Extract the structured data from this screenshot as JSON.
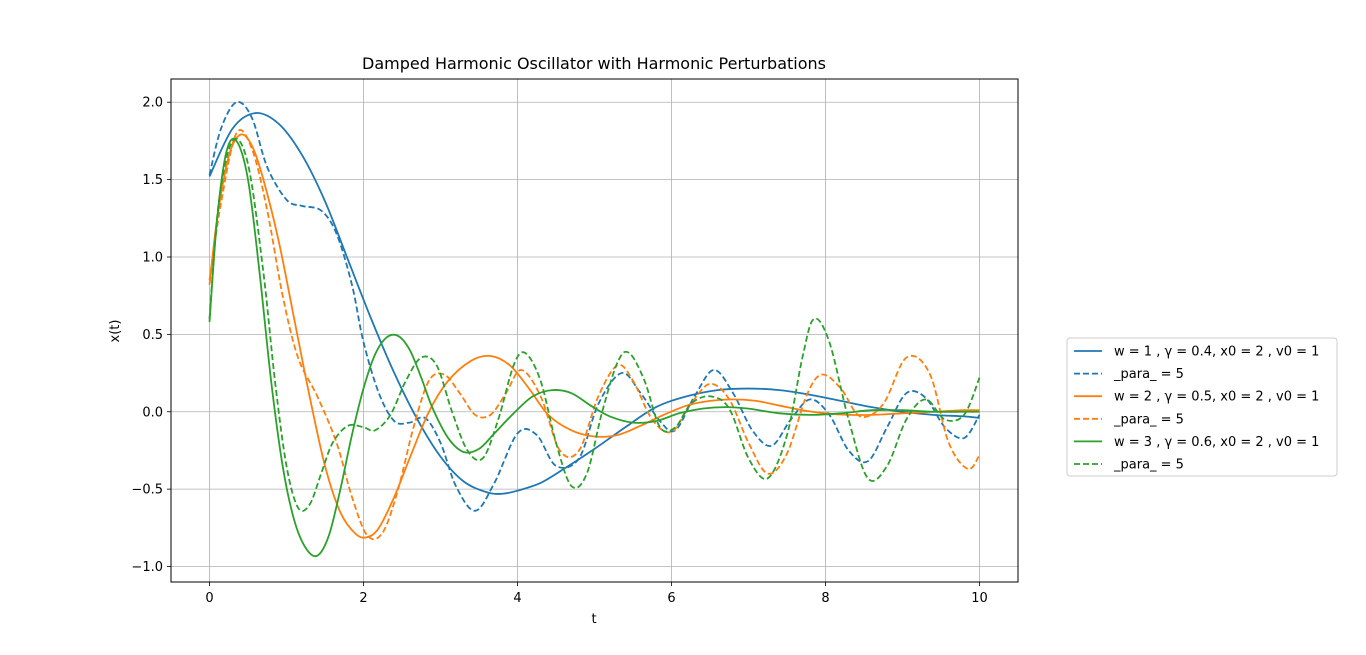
{
  "chart_data": {
    "type": "line",
    "title": "Damped Harmonic Oscillator with Harmonic Perturbations",
    "xlabel": "t",
    "ylabel": "x(t)",
    "xlim": [
      -0.5,
      10.5
    ],
    "ylim": [
      -1.1,
      2.15
    ],
    "xticks": [
      0,
      2,
      4,
      6,
      8,
      10
    ],
    "xtick_labels": [
      "0",
      "2",
      "4",
      "6",
      "8",
      "10"
    ],
    "yticks": [
      -1.0,
      -0.5,
      0.0,
      0.5,
      1.0,
      1.5,
      2.0
    ],
    "ytick_labels": [
      "−1.0",
      "−0.5",
      "0.0",
      "0.5",
      "1.0",
      "1.5",
      "2.0"
    ],
    "grid": true,
    "legend_location": "outside-right",
    "series": [
      {
        "name": "w = 1 , γ = 0.4, x0 = 2 , v0 = 1",
        "color": "#1f77b4",
        "dashed": false,
        "x": [
          0,
          0.3,
          0.6,
          0.9,
          1.2,
          1.5,
          1.8,
          2.1,
          2.4,
          2.7,
          3.0,
          3.3,
          3.6,
          3.8,
          4.0,
          4.3,
          4.6,
          5.0,
          5.4,
          5.8,
          6.2,
          6.6,
          7.0,
          7.4,
          7.8,
          8.2,
          8.6,
          9.0,
          9.4,
          9.8,
          10.0
        ],
        "y": [
          1.52,
          1.83,
          1.93,
          1.86,
          1.66,
          1.36,
          0.98,
          0.6,
          0.25,
          -0.05,
          -0.29,
          -0.45,
          -0.52,
          -0.53,
          -0.51,
          -0.46,
          -0.37,
          -0.24,
          -0.1,
          0.03,
          0.1,
          0.14,
          0.15,
          0.14,
          0.11,
          0.07,
          0.03,
          0.0,
          -0.02,
          -0.03,
          -0.04
        ]
      },
      {
        "name": "_para_ = 5",
        "color": "#1f77b4",
        "dashed": true,
        "x": [
          0,
          0.15,
          0.35,
          0.55,
          0.75,
          1.0,
          1.2,
          1.45,
          1.65,
          1.85,
          2.0,
          2.2,
          2.4,
          2.6,
          2.8,
          3.0,
          3.2,
          3.45,
          3.7,
          4.0,
          4.25,
          4.5,
          4.8,
          5.05,
          5.35,
          5.6,
          5.85,
          6.05,
          6.3,
          6.55,
          6.8,
          7.05,
          7.3,
          7.55,
          7.8,
          8.05,
          8.3,
          8.55,
          8.8,
          9.05,
          9.3,
          9.55,
          9.8,
          10.0
        ],
        "y": [
          1.53,
          1.83,
          2.0,
          1.9,
          1.58,
          1.37,
          1.33,
          1.3,
          1.15,
          0.82,
          0.45,
          0.12,
          -0.06,
          -0.07,
          -0.04,
          -0.2,
          -0.48,
          -0.64,
          -0.46,
          -0.14,
          -0.15,
          -0.35,
          -0.3,
          0.05,
          0.25,
          0.12,
          -0.06,
          -0.12,
          0.1,
          0.27,
          0.12,
          -0.12,
          -0.22,
          -0.05,
          0.08,
          -0.02,
          -0.25,
          -0.32,
          -0.1,
          0.12,
          0.09,
          -0.1,
          -0.17,
          -0.02
        ]
      },
      {
        "name": "w = 2 , γ = 0.5, x0 = 2 , v0 = 1",
        "color": "#ff7f0e",
        "dashed": false,
        "x": [
          0,
          0.1,
          0.25,
          0.4,
          0.55,
          0.7,
          0.9,
          1.1,
          1.3,
          1.5,
          1.7,
          1.9,
          2.05,
          2.2,
          2.4,
          2.6,
          2.85,
          3.1,
          3.4,
          3.65,
          3.9,
          4.15,
          4.4,
          4.7,
          5.0,
          5.3,
          5.6,
          5.9,
          6.2,
          6.5,
          6.8,
          7.1,
          7.4,
          7.7,
          8.0,
          8.3,
          8.6,
          9.0,
          9.4,
          9.8,
          10.0
        ],
        "y": [
          0.82,
          1.25,
          1.65,
          1.79,
          1.72,
          1.5,
          1.1,
          0.6,
          0.1,
          -0.35,
          -0.65,
          -0.79,
          -0.81,
          -0.75,
          -0.55,
          -0.3,
          0.0,
          0.2,
          0.33,
          0.36,
          0.3,
          0.15,
          -0.02,
          -0.12,
          -0.16,
          -0.15,
          -0.09,
          -0.02,
          0.04,
          0.07,
          0.08,
          0.07,
          0.04,
          0.01,
          -0.01,
          -0.02,
          -0.02,
          -0.01,
          0.0,
          0.01,
          0.01
        ]
      },
      {
        "name": "_para_ = 5",
        "color": "#ff7f0e",
        "dashed": true,
        "x": [
          0,
          0.15,
          0.35,
          0.55,
          0.75,
          0.95,
          1.15,
          1.4,
          1.65,
          1.85,
          2.05,
          2.25,
          2.45,
          2.65,
          2.85,
          3.05,
          3.25,
          3.45,
          3.65,
          3.85,
          4.05,
          4.3,
          4.55,
          4.8,
          5.05,
          5.3,
          5.5,
          5.75,
          6.0,
          6.25,
          6.5,
          6.75,
          7.0,
          7.25,
          7.5,
          7.75,
          7.95,
          8.2,
          8.45,
          8.75,
          9.05,
          9.35,
          9.6,
          9.85,
          10.0
        ],
        "y": [
          0.85,
          1.35,
          1.8,
          1.7,
          1.3,
          0.75,
          0.35,
          0.1,
          -0.2,
          -0.55,
          -0.8,
          -0.78,
          -0.5,
          -0.1,
          0.2,
          0.24,
          0.12,
          -0.02,
          -0.02,
          0.12,
          0.27,
          0.1,
          -0.25,
          -0.25,
          0.1,
          0.3,
          0.2,
          -0.05,
          -0.13,
          0.05,
          0.18,
          0.08,
          -0.2,
          -0.4,
          -0.27,
          0.1,
          0.24,
          0.15,
          -0.03,
          0.05,
          0.35,
          0.25,
          -0.2,
          -0.37,
          -0.28
        ]
      },
      {
        "name": "w = 3 , γ = 0.6, x0 = 2 , v0 = 1",
        "color": "#2ca02c",
        "dashed": false,
        "x": [
          0,
          0.1,
          0.22,
          0.35,
          0.5,
          0.65,
          0.8,
          0.95,
          1.1,
          1.25,
          1.4,
          1.55,
          1.7,
          1.85,
          2.0,
          2.15,
          2.3,
          2.45,
          2.6,
          2.75,
          2.9,
          3.1,
          3.3,
          3.5,
          3.7,
          3.95,
          4.2,
          4.45,
          4.7,
          4.95,
          5.2,
          5.5,
          5.8,
          6.1,
          6.4,
          6.7,
          7.0,
          7.4,
          7.8,
          8.2,
          8.6,
          9.0,
          9.4,
          9.8,
          10.0
        ],
        "y": [
          0.58,
          1.25,
          1.68,
          1.75,
          1.5,
          0.9,
          0.2,
          -0.35,
          -0.7,
          -0.88,
          -0.93,
          -0.8,
          -0.5,
          -0.15,
          0.15,
          0.37,
          0.48,
          0.49,
          0.4,
          0.22,
          0.02,
          -0.17,
          -0.26,
          -0.24,
          -0.14,
          -0.01,
          0.1,
          0.14,
          0.12,
          0.04,
          -0.03,
          -0.07,
          -0.06,
          -0.01,
          0.02,
          0.03,
          0.02,
          -0.01,
          -0.02,
          -0.01,
          0.01,
          0.01,
          0.0,
          0.0,
          0.0
        ]
      },
      {
        "name": "_para_ = 5",
        "color": "#2ca02c",
        "dashed": true,
        "x": [
          0,
          0.12,
          0.3,
          0.5,
          0.7,
          0.85,
          1.0,
          1.15,
          1.3,
          1.45,
          1.6,
          1.8,
          2.0,
          2.15,
          2.35,
          2.55,
          2.75,
          2.95,
          3.15,
          3.35,
          3.55,
          3.75,
          3.95,
          4.1,
          4.3,
          4.5,
          4.7,
          4.9,
          5.1,
          5.3,
          5.45,
          5.65,
          5.85,
          6.05,
          6.25,
          6.5,
          6.75,
          7.0,
          7.25,
          7.5,
          7.7,
          7.85,
          8.05,
          8.3,
          8.55,
          8.8,
          9.05,
          9.3,
          9.55,
          9.8,
          10.0
        ],
        "y": [
          0.6,
          1.35,
          1.75,
          1.6,
          0.9,
          0.2,
          -0.35,
          -0.62,
          -0.6,
          -0.4,
          -0.2,
          -0.09,
          -0.1,
          -0.12,
          -0.02,
          0.2,
          0.35,
          0.3,
          0.0,
          -0.25,
          -0.3,
          -0.05,
          0.3,
          0.38,
          0.2,
          -0.2,
          -0.48,
          -0.4,
          0.0,
          0.32,
          0.38,
          0.2,
          -0.1,
          -0.1,
          0.05,
          0.1,
          0.02,
          -0.3,
          -0.43,
          -0.15,
          0.35,
          0.6,
          0.45,
          -0.05,
          -0.43,
          -0.35,
          -0.05,
          0.08,
          -0.05,
          -0.02,
          0.22
        ]
      }
    ]
  }
}
